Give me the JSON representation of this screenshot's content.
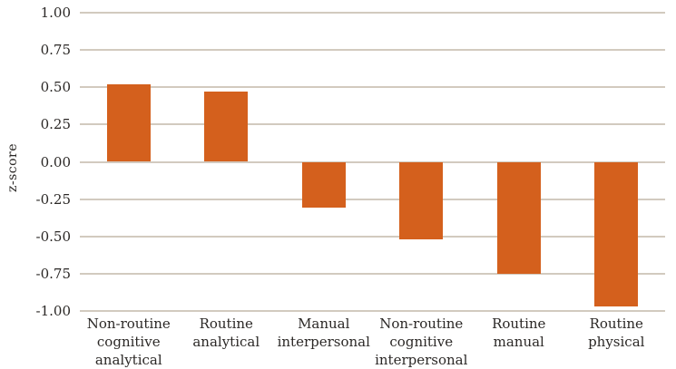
{
  "chart_data": {
    "type": "bar",
    "title": "",
    "xlabel": "",
    "ylabel": "z-score",
    "categories": [
      "Non-routine cognitive analytical",
      "Routine analytical",
      "Manual interpersonal",
      "Non-routine cognitive interpersonal",
      "Routine manual",
      "Routine physical"
    ],
    "values": [
      0.52,
      0.47,
      -0.31,
      -0.52,
      -0.75,
      -0.97
    ],
    "ylim": [
      -1.0,
      1.0
    ],
    "ytick_values": [
      1.0,
      0.75,
      0.5,
      0.25,
      0.0,
      -0.25,
      -0.5,
      -0.75,
      -1.0
    ],
    "ytick_labels": [
      "1.00",
      "0.75",
      "0.50",
      "0.25",
      "0.00",
      "-0.25",
      "-0.50",
      "-0.75",
      "-1.00"
    ],
    "grid": true,
    "legend": "none",
    "bar_color": "#d4601d",
    "gridline_color": "#d2cabf",
    "text_color": "#2b2826"
  }
}
